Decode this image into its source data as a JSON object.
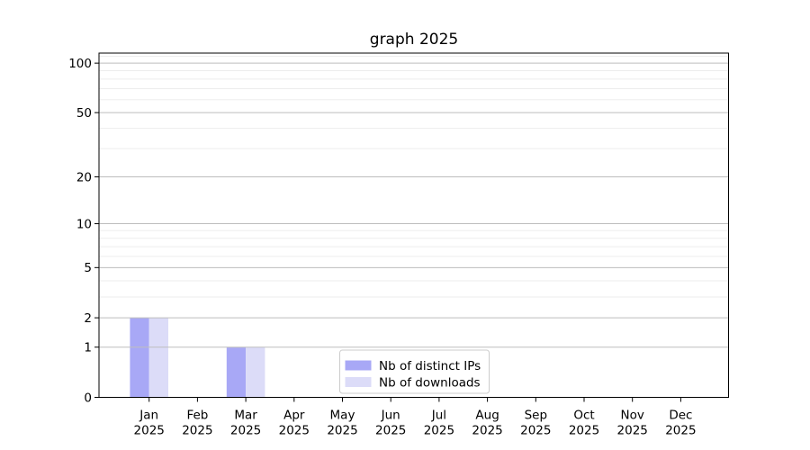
{
  "chart_data": {
    "type": "bar",
    "title": "graph 2025",
    "categories": [
      "Jan 2025",
      "Feb 2025",
      "Mar 2025",
      "Apr 2025",
      "May 2025",
      "Jun 2025",
      "Jul 2025",
      "Aug 2025",
      "Sep 2025",
      "Oct 2025",
      "Nov 2025",
      "Dec 2025"
    ],
    "series": [
      {
        "name": "Nb of distinct IPs",
        "color": "#a8a8f6",
        "values": [
          2,
          0,
          1,
          0,
          0,
          0,
          0,
          0,
          0,
          0,
          0,
          0
        ]
      },
      {
        "name": "Nb of downloads",
        "color": "#dcdcf8",
        "values": [
          2,
          0,
          1,
          0,
          0,
          0,
          0,
          0,
          0,
          0,
          0,
          0
        ]
      }
    ],
    "yscale": "log1p",
    "ylim": [
      0,
      115
    ],
    "y_major_ticks": [
      {
        "value": 0,
        "label": "0"
      },
      {
        "value": 1,
        "label": "1"
      },
      {
        "value": 2,
        "label": "2"
      },
      {
        "value": 5,
        "label": "5"
      },
      {
        "value": 10,
        "label": "10"
      },
      {
        "value": 20,
        "label": "20"
      },
      {
        "value": 50,
        "label": "50"
      },
      {
        "value": 100,
        "label": "100"
      }
    ],
    "y_minor_ticks": [
      3,
      4,
      6,
      7,
      8,
      9,
      30,
      40,
      60,
      70,
      80,
      90,
      110
    ],
    "grid": true,
    "xlabel": "",
    "ylabel": "",
    "legend": {
      "labels": [
        "Nb of distinct IPs",
        "Nb of downloads"
      ],
      "position": "lower center",
      "frame": true
    }
  },
  "colors": {
    "background": "#ffffff",
    "text": "#000000",
    "spine": "#000000",
    "grid_major": "#bdbdbd",
    "grid_minor": "#ededed",
    "legend_border": "#cccccc",
    "legend_fill": "#ffffff"
  }
}
